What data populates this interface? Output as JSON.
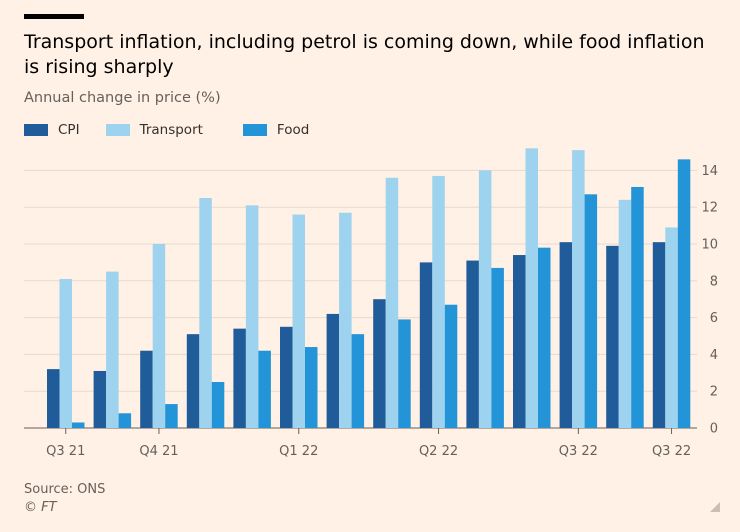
{
  "title": "Transport inflation, including petrol is coming down, while food inflation is rising sharply",
  "subtitle": "Annual change in price (%)",
  "source": "Source: ONS",
  "copyright": "© FT",
  "chart_data": {
    "type": "bar",
    "categories": [
      "1",
      "2",
      "3",
      "4",
      "5",
      "6",
      "7",
      "8",
      "9",
      "10",
      "11",
      "12",
      "13",
      "14"
    ],
    "x_tick_labels": [
      {
        "index": 0,
        "label": "Q3 21"
      },
      {
        "index": 2,
        "label": "Q4 21"
      },
      {
        "index": 5,
        "label": "Q1 22"
      },
      {
        "index": 8,
        "label": "Q2 22"
      },
      {
        "index": 11,
        "label": "Q3 22"
      },
      {
        "index": 13,
        "label": "Q3 22"
      }
    ],
    "series": [
      {
        "name": "CPI",
        "color": "#1f5c99",
        "values": [
          3.2,
          3.1,
          4.2,
          5.1,
          5.4,
          5.5,
          6.2,
          7.0,
          9.0,
          9.1,
          9.4,
          10.1,
          9.9,
          10.1
        ]
      },
      {
        "name": "Transport",
        "color": "#9dd3ee",
        "values": [
          8.1,
          8.5,
          10.0,
          12.5,
          12.1,
          11.6,
          11.7,
          13.6,
          13.7,
          14.0,
          15.2,
          15.1,
          12.4,
          10.9
        ]
      },
      {
        "name": "Food",
        "color": "#2394d7",
        "values": [
          0.3,
          0.8,
          1.3,
          2.5,
          4.2,
          4.4,
          5.1,
          5.9,
          6.7,
          8.7,
          9.8,
          12.7,
          13.1,
          14.6
        ]
      }
    ],
    "ylim": [
      0,
      15
    ],
    "yticks": [
      0,
      2,
      4,
      6,
      8,
      10,
      12,
      14
    ],
    "y_axis_position": "right",
    "grid": true,
    "legend_placement": "top-left"
  }
}
